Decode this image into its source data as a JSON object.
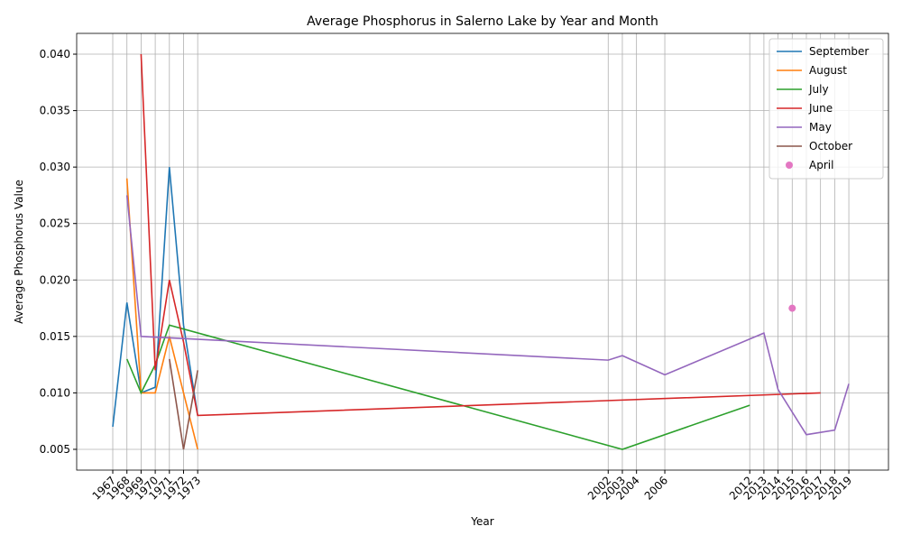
{
  "chart_data": {
    "type": "line",
    "title": "Average Phosphorus in Salerno Lake by Year and Month",
    "x_label": "Year",
    "y_label": "Average Phosphorus Value",
    "xlim": [
      1964.45,
      2021.8
    ],
    "ylim": [
      0.00316,
      0.04184
    ],
    "xticks": [
      1967,
      1968,
      1969,
      1970,
      1971,
      1972,
      1973,
      2002,
      2003,
      2004,
      2006,
      2012,
      2013,
      2014,
      2015,
      2016,
      2017,
      2018,
      2019
    ],
    "yticks": [
      {
        "value": 0.005,
        "label": "0.005"
      },
      {
        "value": 0.01,
        "label": "0.010"
      },
      {
        "value": 0.015,
        "label": "0.015"
      },
      {
        "value": 0.02,
        "label": "0.020"
      },
      {
        "value": 0.025,
        "label": "0.025"
      },
      {
        "value": 0.03,
        "label": "0.030"
      },
      {
        "value": 0.035,
        "label": "0.035"
      },
      {
        "value": 0.04,
        "label": "0.040"
      }
    ],
    "grid": true,
    "legend": "upper right",
    "series": [
      {
        "name": "September",
        "color": "#1f77b4",
        "x": [
          1967,
          1968,
          1969,
          1970,
          1971,
          1972,
          1973
        ],
        "values": [
          0.007,
          0.018,
          0.01,
          0.0105,
          0.03,
          0.016,
          0.008
        ]
      },
      {
        "name": "August",
        "color": "#ff7f0e",
        "x": [
          1968,
          1969,
          1970,
          1971,
          1972,
          1973
        ],
        "values": [
          0.029,
          0.01,
          0.01,
          0.015,
          0.01,
          0.005
        ]
      },
      {
        "name": "July",
        "color": "#2ca02c",
        "x": [
          1968,
          1969,
          1970,
          1971,
          2003,
          2012
        ],
        "values": [
          0.013,
          0.01,
          0.0125,
          0.016,
          0.005,
          0.0089
        ]
      },
      {
        "name": "June",
        "color": "#d62728",
        "x": [
          1969,
          1970,
          1971,
          1972,
          1973,
          2017
        ],
        "values": [
          0.04,
          0.012,
          0.02,
          0.0145,
          0.008,
          0.01
        ]
      },
      {
        "name": "May",
        "color": "#9467bd",
        "x": [
          1968,
          1969,
          2002,
          2003,
          2006,
          2013,
          2014,
          2016,
          2018,
          2019
        ],
        "values": [
          0.0275,
          0.015,
          0.0129,
          0.0133,
          0.0116,
          0.0153,
          0.0103,
          0.0063,
          0.0067,
          0.0108
        ]
      },
      {
        "name": "October",
        "color": "#8c564b",
        "x": [
          1971,
          1972,
          1973
        ],
        "values": [
          0.013,
          0.005,
          0.012
        ]
      },
      {
        "name": "April",
        "color": "#e377c2",
        "x": [
          2015
        ],
        "values": [
          0.0175
        ],
        "marker": true
      }
    ]
  }
}
